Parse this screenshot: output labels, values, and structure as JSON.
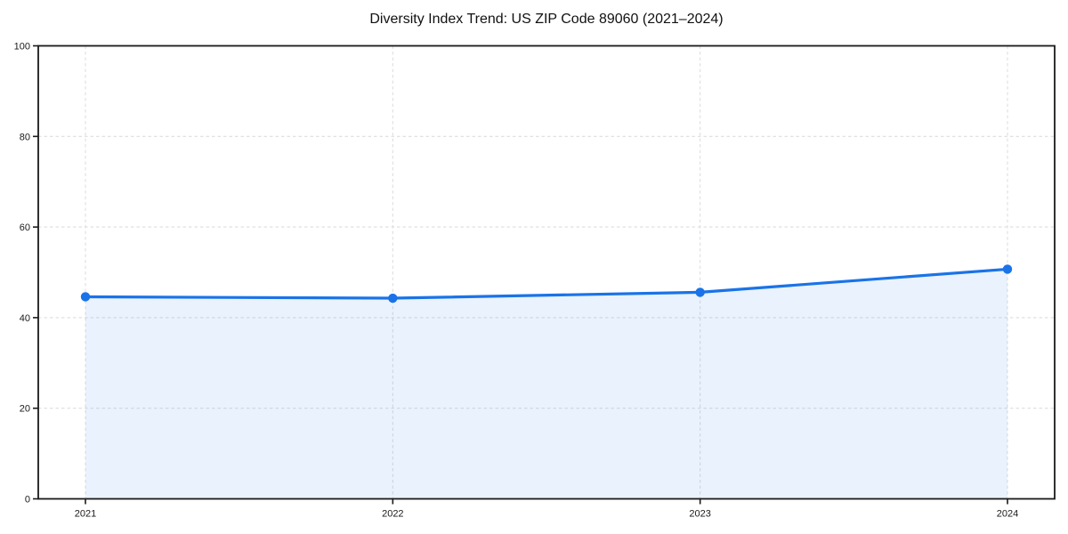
{
  "title": "Diversity Index Trend: US ZIP Code 89060 (2021–2024)",
  "chart_data": {
    "type": "line",
    "title": "Diversity Index Trend: US ZIP Code 89060 (2021–2024)",
    "x": [
      "2021",
      "2022",
      "2023",
      "2024"
    ],
    "series": [
      {
        "name": "Diversity Index",
        "values": [
          44.6,
          44.3,
          45.6,
          50.7
        ]
      }
    ],
    "xlabel": "",
    "ylabel": "",
    "ylim": [
      0,
      100
    ],
    "yticks": [
      0,
      20,
      40,
      60,
      80,
      100
    ],
    "grid": true,
    "grid_style": "dashed",
    "legend": "none",
    "area_fill": true,
    "marker": "circle"
  },
  "colors": {
    "line": "#1a73e8",
    "marker": "#1a73e8",
    "area": "#1a73e8",
    "area_opacity": "0.09",
    "grid": "#dedede",
    "spine": "#1a1a1a",
    "tick_label": "#1a1a1a",
    "background": "#ffffff"
  }
}
